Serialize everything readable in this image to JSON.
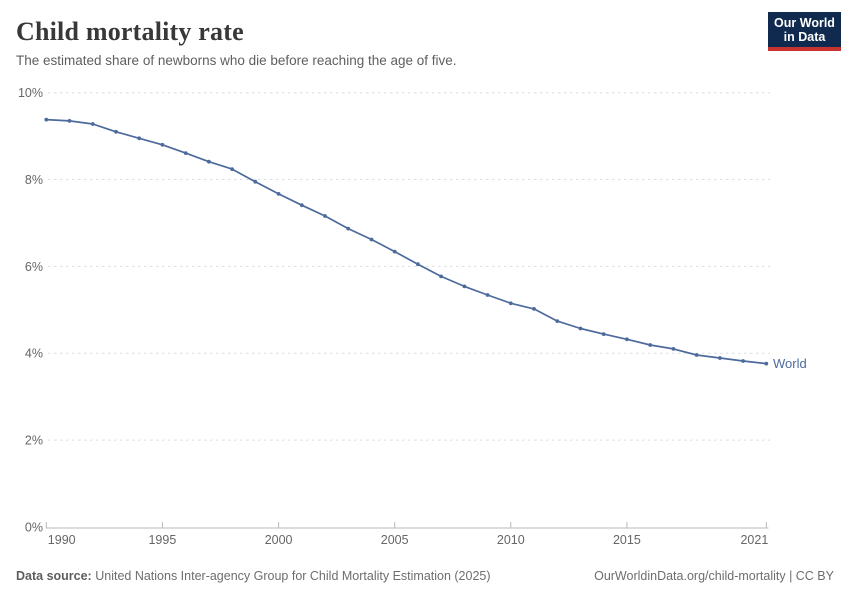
{
  "header": {
    "title": "Child mortality rate",
    "subtitle": "The estimated share of newborns who die before reaching the age of five.",
    "logo": {
      "line1": "Our World",
      "line2": "in Data"
    }
  },
  "footer": {
    "source_label": "Data source:",
    "source_text": "United Nations Inter-agency Group for Child Mortality Estimation (2025)",
    "link_text": "OurWorldinData.org/child-mortality | CC BY"
  },
  "colors": {
    "line_blue": "#4C6A9C",
    "grid": "#DDDDDD",
    "axis_line": "#B9B9B9",
    "axis_text": "#666666",
    "title_text": "#383838",
    "logo_navy": "#0F2A4E",
    "logo_red": "#C7342F"
  },
  "chart_data": {
    "type": "line",
    "title": "Child mortality rate",
    "subtitle": "The estimated share of newborns who die before reaching the age of five.",
    "xlabel": "",
    "ylabel": "",
    "xlim": [
      1990,
      2021
    ],
    "ylim": [
      0,
      10
    ],
    "grid": "horizontal-dashed",
    "legend_position": "end-of-line-label",
    "x": [
      1990,
      1991,
      1992,
      1993,
      1994,
      1995,
      1996,
      1997,
      1998,
      1999,
      2000,
      2001,
      2002,
      2003,
      2004,
      2005,
      2006,
      2007,
      2008,
      2009,
      2010,
      2011,
      2012,
      2013,
      2014,
      2015,
      2016,
      2017,
      2018,
      2019,
      2020,
      2021
    ],
    "series": [
      {
        "name": "World",
        "color": "#4C6A9C",
        "unit": "%",
        "values": [
          9.38,
          9.35,
          9.28,
          9.1,
          8.95,
          8.8,
          8.61,
          8.41,
          8.24,
          7.95,
          7.67,
          7.41,
          7.16,
          6.87,
          6.62,
          6.34,
          6.05,
          5.77,
          5.54,
          5.34,
          5.15,
          5.02,
          4.74,
          4.57,
          4.44,
          4.32,
          4.19,
          4.1,
          3.96,
          3.89,
          3.82,
          3.76
        ]
      }
    ],
    "y_ticks": [
      {
        "value": 0,
        "label": "0%"
      },
      {
        "value": 2,
        "label": "2%"
      },
      {
        "value": 4,
        "label": "4%"
      },
      {
        "value": 6,
        "label": "6%"
      },
      {
        "value": 8,
        "label": "8%"
      },
      {
        "value": 10,
        "label": "10%"
      }
    ],
    "x_ticks": [
      {
        "value": 1990,
        "label": "1990"
      },
      {
        "value": 1995,
        "label": "1995"
      },
      {
        "value": 2000,
        "label": "2000"
      },
      {
        "value": 2005,
        "label": "2005"
      },
      {
        "value": 2010,
        "label": "2010"
      },
      {
        "value": 2015,
        "label": "2015"
      },
      {
        "value": 2021,
        "label": "2021"
      }
    ]
  }
}
